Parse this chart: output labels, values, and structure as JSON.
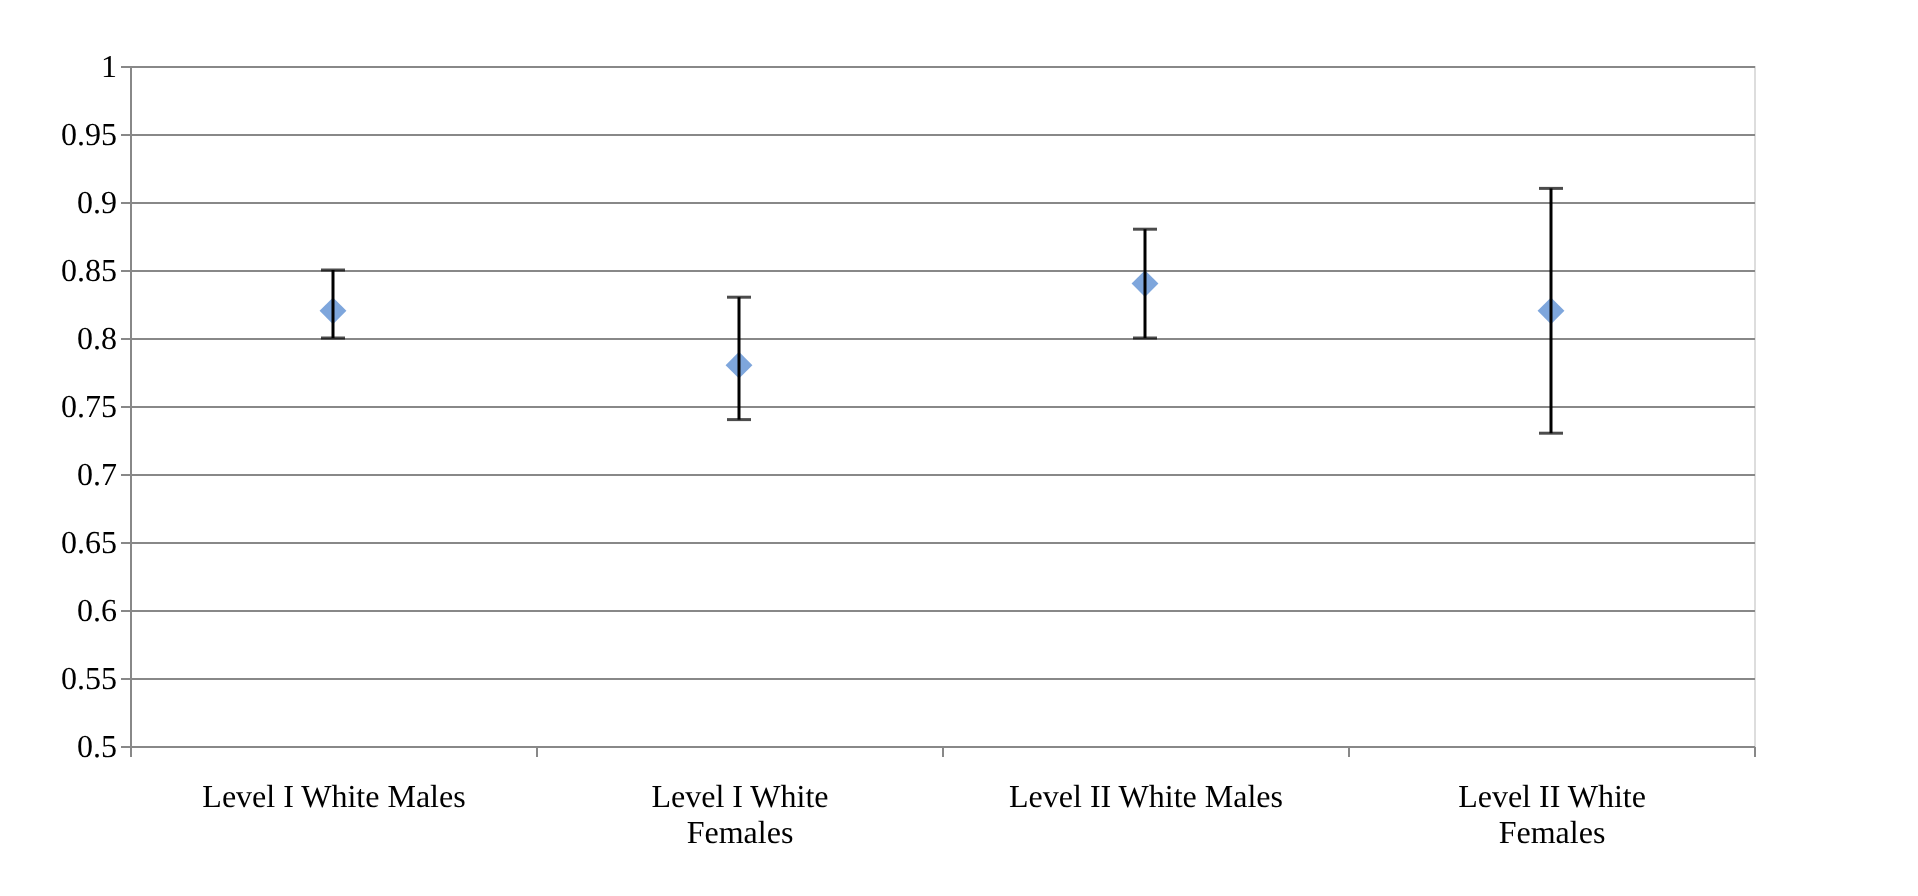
{
  "chart_data": {
    "type": "scatter",
    "categories": [
      "Level I White Males",
      "Level I White Females",
      "Level II White Males",
      "Level II White Females"
    ],
    "values": [
      0.82,
      0.78,
      0.84,
      0.82
    ],
    "errors": [
      [
        0.8,
        0.85
      ],
      [
        0.74,
        0.83
      ],
      [
        0.8,
        0.88
      ],
      [
        0.73,
        0.91
      ]
    ],
    "color": "#7ea6dc",
    "marker": "diamond",
    "grid": "y",
    "ylim": [
      0.5,
      1
    ],
    "yticks": [
      0.5,
      0.55,
      0.6,
      0.65,
      0.7,
      0.75,
      0.8,
      0.85,
      0.9,
      0.95,
      1
    ]
  }
}
